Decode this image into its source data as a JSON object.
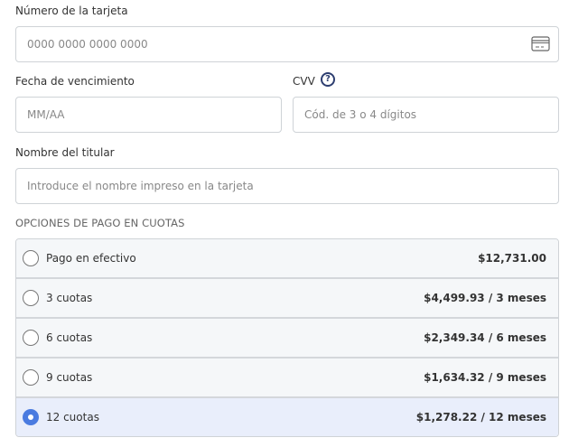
{
  "card_number": {
    "label": "Número de la tarjeta",
    "placeholder": "0000 0000 0000 0000",
    "icon": "credit-card-icon"
  },
  "expiry": {
    "label": "Fecha de vencimiento",
    "placeholder": "MM/AA"
  },
  "cvv": {
    "label": "CVV",
    "placeholder": "Cód. de 3 o 4 dígitos",
    "help_icon": "?"
  },
  "holder": {
    "label": "Nombre del titular",
    "placeholder": "Introduce el nombre impreso en la tarjeta"
  },
  "installments": {
    "title": "OPCIONES DE PAGO EN CUOTAS",
    "accent": "#4a7be0",
    "selected": 4,
    "options": [
      {
        "label": "Pago en efectivo",
        "price": "$12,731.00"
      },
      {
        "label": "3 cuotas",
        "price": "$4,499.93 / 3 meses"
      },
      {
        "label": "6 cuotas",
        "price": "$2,349.34 / 6 meses"
      },
      {
        "label": "9 cuotas",
        "price": "$1,634.32 / 9 meses"
      },
      {
        "label": "12 cuotas",
        "price": "$1,278.22 / 12 meses"
      }
    ]
  }
}
